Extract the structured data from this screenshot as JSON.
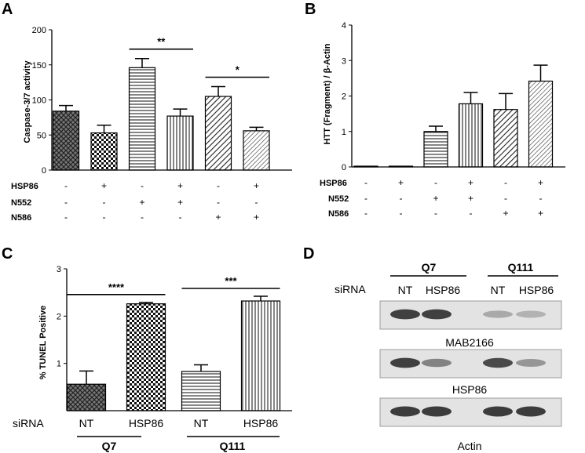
{
  "panels": {
    "A": "A",
    "B": "B",
    "C": "C",
    "D": "D"
  },
  "row_labels": {
    "hsp86": "HSP86",
    "n552": "N552",
    "n586": "N586"
  },
  "plus": "+",
  "minus": "-",
  "conditions": {
    "HSP86": [
      "-",
      "+",
      "-",
      "+",
      "-",
      "+"
    ],
    "N552": [
      "-",
      "-",
      "+",
      "+",
      "-",
      "-"
    ],
    "N586": [
      "-",
      "-",
      "-",
      "-",
      "+",
      "+"
    ]
  },
  "fill_patterns": {
    "A": [
      "crosshatch",
      "checker",
      "horizontal",
      "vertical",
      "diagonal",
      "diagonal-fine"
    ],
    "B": [
      "crosshatch",
      "checker",
      "horizontal",
      "vertical",
      "diagonal",
      "diagonal-fine"
    ],
    "C": [
      "crosshatch",
      "checker",
      "horizontal",
      "vertical"
    ]
  },
  "chart_data": [
    {
      "type": "bar",
      "panel": "A",
      "ylabel": "Caspase-3/7 activity",
      "ylim": [
        0,
        200
      ],
      "yticks": [
        0,
        50,
        100,
        150,
        200
      ],
      "values": [
        84,
        53,
        146,
        77,
        105,
        56
      ],
      "errors": [
        8,
        11,
        13,
        10,
        14,
        5
      ],
      "significance": [
        {
          "label": "**",
          "from": 3,
          "to": 4
        },
        {
          "label": "*",
          "from": 5,
          "to": 6
        }
      ]
    },
    {
      "type": "bar",
      "panel": "B",
      "ylabel": "HTT (Fragment) / β-Actin",
      "ylim": [
        0,
        4
      ],
      "yticks": [
        0,
        1,
        2,
        3,
        4
      ],
      "values": [
        0.02,
        0.02,
        1.0,
        1.78,
        1.62,
        2.42
      ],
      "errors": [
        0,
        0,
        0.15,
        0.32,
        0.45,
        0.45
      ]
    },
    {
      "type": "bar",
      "panel": "C",
      "ylabel": "% TUNEL Positive",
      "ylim": [
        0,
        3
      ],
      "yticks": [
        1,
        2,
        3
      ],
      "categories": [
        "NT",
        "HSP86",
        "NT",
        "HSP86"
      ],
      "values": [
        0.56,
        2.26,
        0.83,
        2.32
      ],
      "errors": [
        0.28,
        0.03,
        0.14,
        0.1
      ],
      "groups": [
        "Q7",
        "Q111"
      ],
      "row_label": "siRNA",
      "significance": [
        {
          "label": "****",
          "from": 1,
          "to": 2
        },
        {
          "label": "***",
          "from": 3,
          "to": 4
        }
      ]
    }
  ],
  "blot": {
    "groups": [
      "Q7",
      "Q111"
    ],
    "row_label": "siRNA",
    "lanes": [
      "NT",
      "HSP86",
      "NT",
      "HSP86"
    ],
    "strips": [
      {
        "label": "MAB2166",
        "intensity": [
          0.9,
          0.9,
          0.35,
          0.3
        ]
      },
      {
        "label": "HSP86",
        "intensity": [
          0.9,
          0.55,
          0.85,
          0.45
        ]
      },
      {
        "label": "Actin",
        "intensity": [
          0.92,
          0.92,
          0.92,
          0.92
        ]
      }
    ]
  }
}
